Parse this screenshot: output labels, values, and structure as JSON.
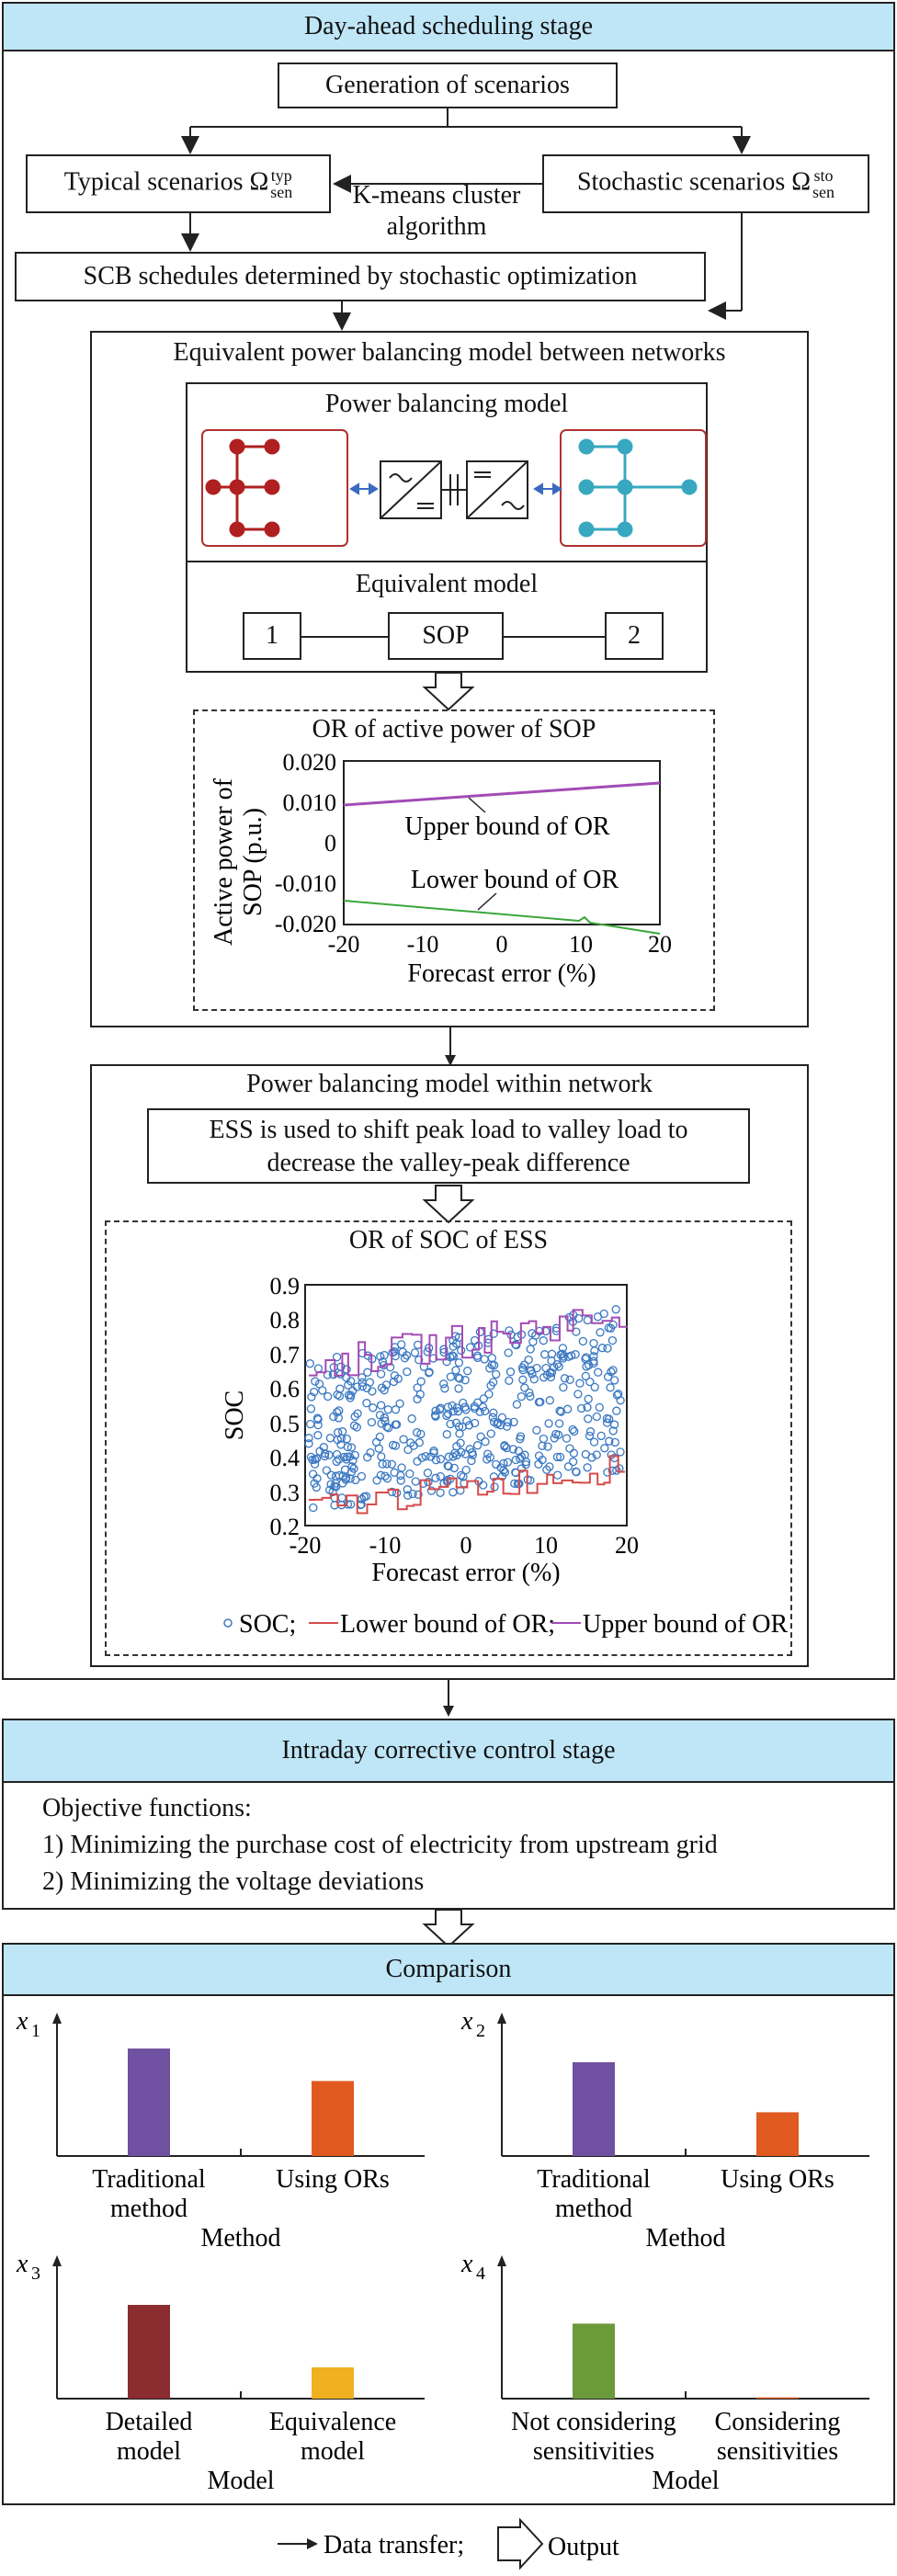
{
  "day_ahead": {
    "title": "Day-ahead scheduling stage",
    "generation": "Generation of scenarios",
    "typical": "Typical scenarios Ω",
    "typical_sup": "typ",
    "typical_sub": "sen",
    "stochastic": "Stochastic scenarios Ω",
    "stochastic_sup": "sto",
    "stochastic_sub": "sen",
    "kmeans_line1": "K-means cluster",
    "kmeans_line2": "algorithm",
    "scb": "SCB schedules determined by stochastic optimization",
    "equiv_title": "Equivalent power balancing model between networks",
    "pb_model": "Power balancing model",
    "equiv_model": "Equivalent model",
    "node1": "1",
    "sop": "SOP",
    "node2": "2"
  },
  "sop_chart": {
    "title": "OR of active power of SOP",
    "ylabel_line1": "Active power of",
    "ylabel_line2": "SOP (p.u.)",
    "xlabel": "Forecast error (%)",
    "yticks": [
      "0.020",
      "0.010",
      "0",
      "-0.010",
      "-0.020"
    ],
    "xticks": [
      "-20",
      "-10",
      "0",
      "10",
      "20"
    ],
    "upper_label": "Upper bound of OR",
    "lower_label": "Lower bound of OR",
    "upper_color": "#a24bb5",
    "lower_color": "#3aa63a"
  },
  "within": {
    "title": "Power balancing model within network",
    "ess_line1": "ESS is used to shift peak load to valley load to",
    "ess_line2": "decrease the valley-peak difference"
  },
  "soc_chart": {
    "title": "OR of SOC of ESS",
    "ylabel": "SOC",
    "xlabel": "Forecast error (%)",
    "yticks": [
      "0.9",
      "0.8",
      "0.7",
      "0.6",
      "0.5",
      "0.4",
      "0.3",
      "0.2"
    ],
    "xticks": [
      "-20",
      "-10",
      "0",
      "10",
      "20"
    ],
    "legend_soc": "SOC;",
    "legend_lower": "Lower bound of OR;",
    "legend_upper": "Upper bound of OR",
    "soc_color": "#3a78c2",
    "lower_color": "#d64a4a",
    "upper_color": "#a24bb5"
  },
  "intraday": {
    "title": "Intraday corrective control stage",
    "obj": "Objective functions:",
    "obj1": "1) Minimizing the purchase cost of electricity from upstream grid",
    "obj2": "2) Minimizing the voltage deviations"
  },
  "comparison": {
    "title": "Comparison",
    "charts": [
      {
        "ylabel": "x",
        "sub": "1",
        "xlabel": "Method",
        "cat1_l1": "Traditional",
        "cat1_l2": "method",
        "cat2_l1": "Using ORs",
        "cat2_l2": "",
        "values": [
          0.86,
          0.6
        ],
        "colors": [
          "#7050a0",
          "#e05a20"
        ]
      },
      {
        "ylabel": "x",
        "sub": "2",
        "xlabel": "Method",
        "cat1_l1": "Traditional",
        "cat1_l2": "method",
        "cat2_l1": "Using ORs",
        "cat2_l2": "",
        "values": [
          0.75,
          0.35
        ],
        "colors": [
          "#7050a0",
          "#e05a20"
        ]
      },
      {
        "ylabel": "x",
        "sub": "3",
        "xlabel": "Model",
        "cat1_l1": "Detailed",
        "cat1_l2": "model",
        "cat2_l1": "Equivalence",
        "cat2_l2": "model",
        "values": [
          0.75,
          0.25
        ],
        "colors": [
          "#8a2c30",
          "#f0b020"
        ]
      },
      {
        "ylabel": "x",
        "sub": "4",
        "xlabel": "Model",
        "cat1_l1": "Not considering",
        "cat1_l2": "sensitivities",
        "cat2_l1": "Considering",
        "cat2_l2": "sensitivities",
        "values": [
          0.6,
          0.01
        ],
        "colors": [
          "#6a9a3a",
          "#e05a20"
        ]
      }
    ]
  },
  "legend": {
    "data_transfer": "Data transfer;",
    "output": "Output"
  }
}
